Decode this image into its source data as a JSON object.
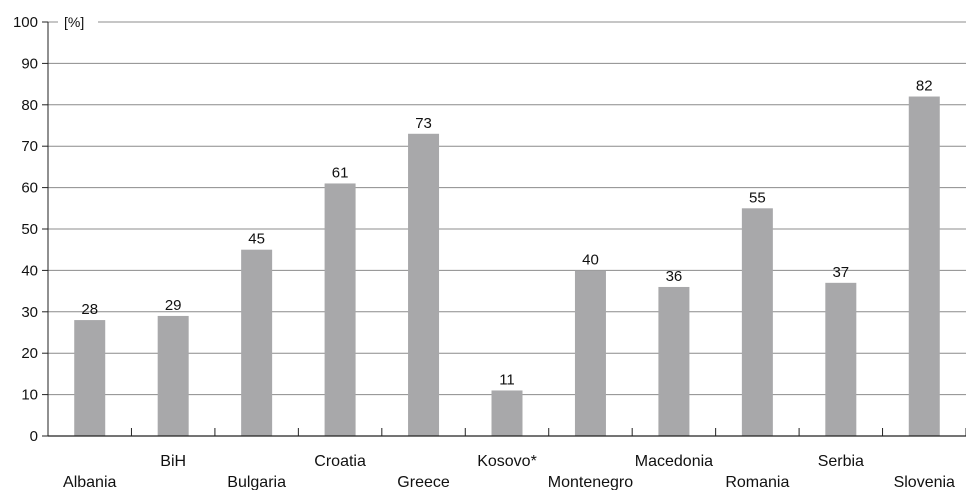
{
  "chart_data": {
    "type": "bar",
    "unit_label": "[%]",
    "categories": [
      "Albania",
      "BiH",
      "Bulgaria",
      "Croatia",
      "Greece",
      "Kosovo*",
      "Montenegro",
      "Macedonia",
      "Romania",
      "Serbia",
      "Slovenia"
    ],
    "values": [
      28,
      29,
      45,
      61,
      73,
      11,
      40,
      36,
      55,
      37,
      82
    ],
    "ylim": [
      0,
      100
    ],
    "yticks": [
      0,
      10,
      20,
      30,
      40,
      50,
      60,
      70,
      80,
      90,
      100
    ],
    "grid": true,
    "data_labels": true,
    "bar_color": "#a8a8aa",
    "grid_color": "#8c8c8c",
    "axis_color": "#222222"
  }
}
